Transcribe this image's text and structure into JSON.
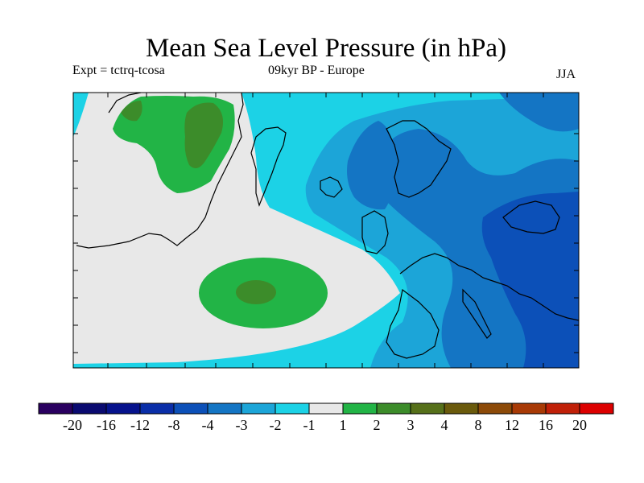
{
  "title": "Mean Sea Level Pressure (in hPa)",
  "subtitle_left": "Expt = tctrq-tcosa",
  "subtitle_center": "09kyr BP - Europe",
  "subtitle_right": "JJA",
  "colorbar": {
    "colors": [
      "#2a0060",
      "#0a0a70",
      "#06128c",
      "#0a2ea8",
      "#0c50b8",
      "#1475c4",
      "#1ca5d8",
      "#1cd2e6",
      "#e8e8e8",
      "#22b446",
      "#3c8c2a",
      "#56701a",
      "#6a5a0c",
      "#8c4a08",
      "#a83a06",
      "#c02008",
      "#dc0000"
    ],
    "labels": [
      "-20",
      "-16",
      "-12",
      "-8",
      "-4",
      "-3",
      "-2",
      "-1",
      "1",
      "2",
      "3",
      "4",
      "8",
      "12",
      "16",
      "20"
    ]
  },
  "map_palette": {
    "light_gray": "#e8e8e8",
    "cyan": "#1cd2e6",
    "light_blue": "#1ca5d8",
    "mid_blue": "#1475c4",
    "blue": "#0c50b8",
    "dark_blue": "#0a2ea8",
    "green": "#22b446",
    "dark_green": "#3c8c2a",
    "olive": "#56701a"
  }
}
